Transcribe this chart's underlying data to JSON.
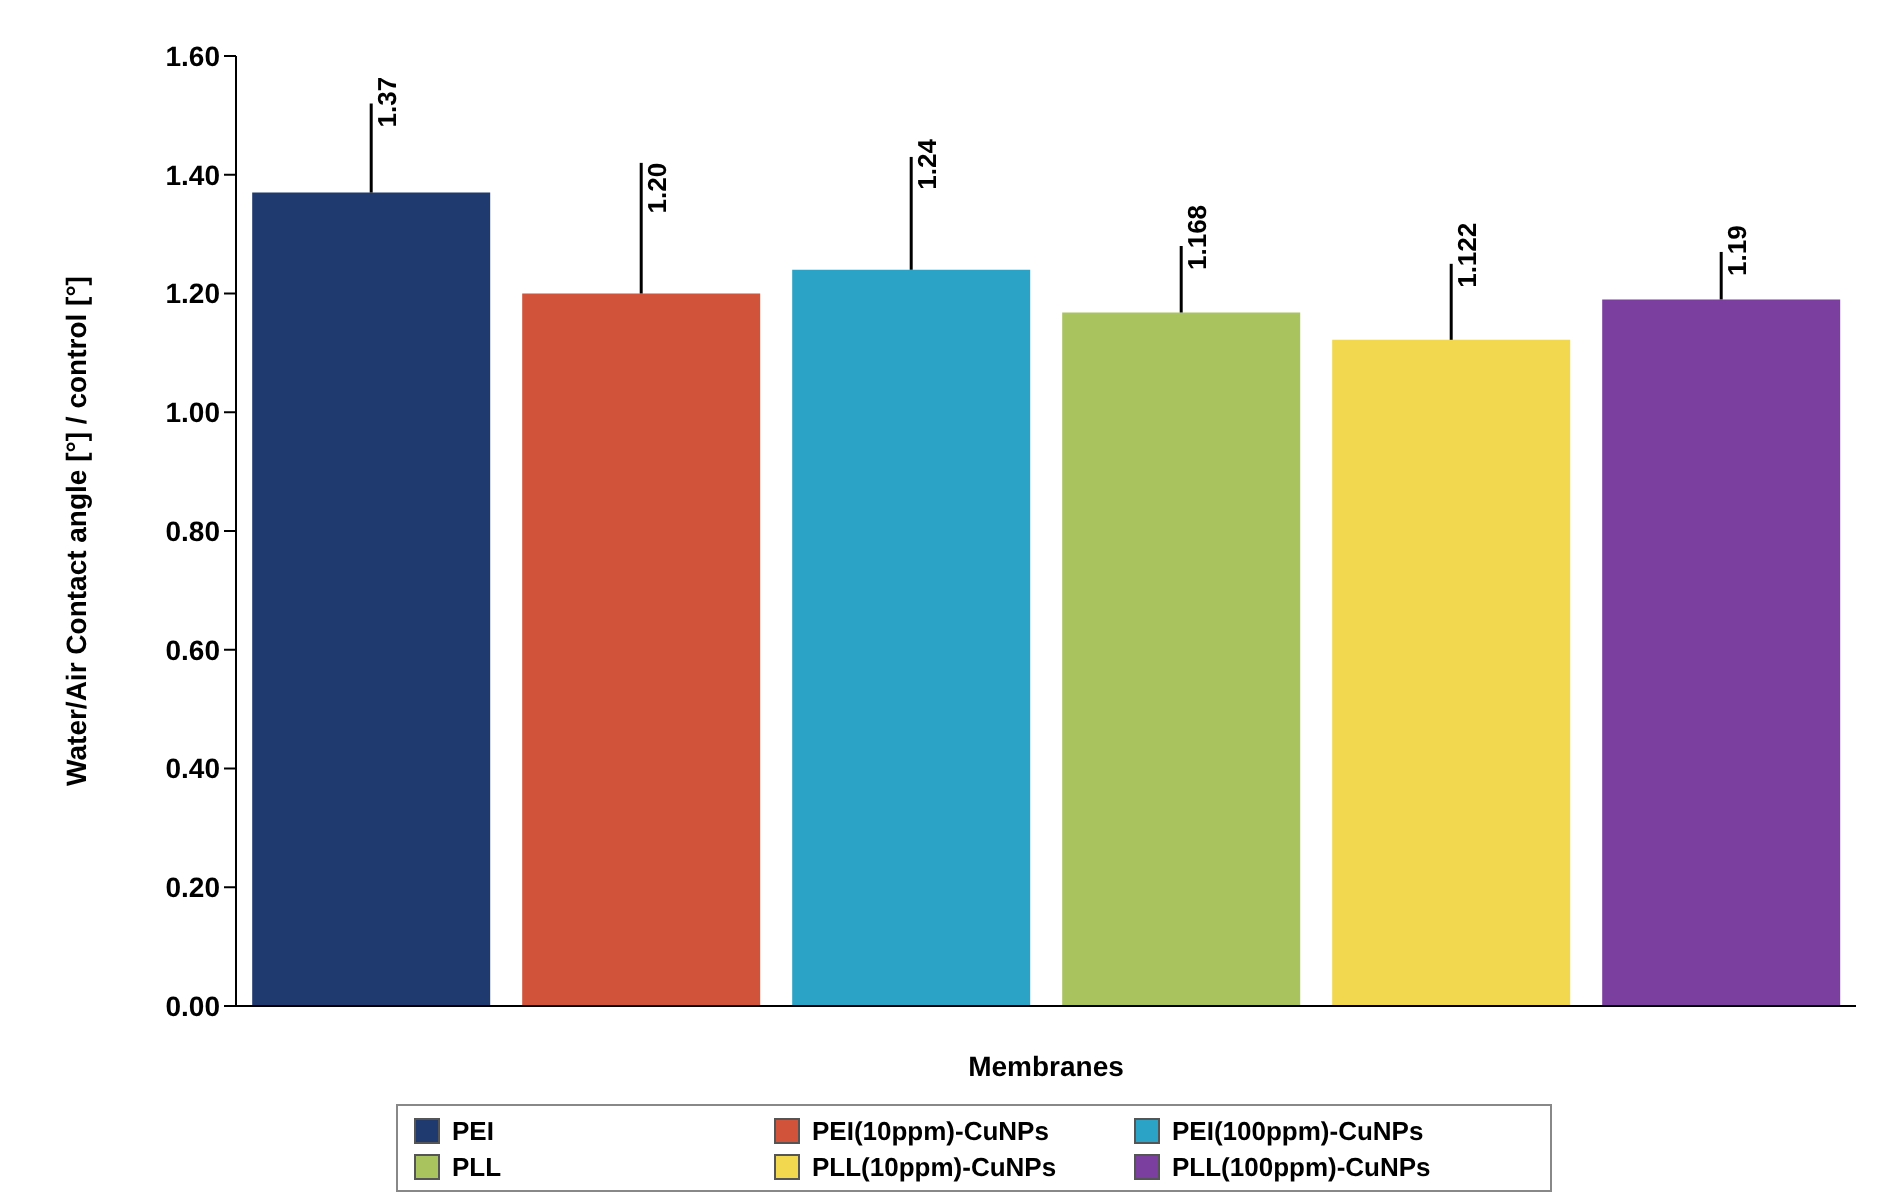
{
  "chart_data": {
    "type": "bar",
    "xlabel": "Membranes",
    "ylabel": "Water/Air Contact angle [°] / control [°]",
    "categories": [
      null,
      null,
      null,
      null,
      null,
      null
    ],
    "series": [
      {
        "name": "PEI",
        "color": "#1f3a6e",
        "values": [
          1.37,
          null,
          null,
          null,
          null,
          null
        ],
        "errors": [
          [
            1.37,
            1.52
          ],
          null,
          null,
          null,
          null,
          null
        ],
        "value_labels": [
          "1.37",
          null,
          null,
          null,
          null,
          null
        ]
      },
      {
        "name": "PEI(10ppm)-CuNPs",
        "color": "#d0533a",
        "values": [
          null,
          1.2,
          null,
          null,
          null,
          null
        ],
        "errors": [
          null,
          [
            1.2,
            1.42
          ],
          null,
          null,
          null,
          null
        ],
        "value_labels": [
          null,
          "1.20",
          null,
          null,
          null,
          null
        ]
      },
      {
        "name": "PEI(100ppm)-CuNPs",
        "color": "#2aa3c6",
        "values": [
          null,
          null,
          1.24,
          null,
          null,
          null
        ],
        "errors": [
          null,
          null,
          [
            1.24,
            1.43
          ],
          null,
          null,
          null
        ],
        "value_labels": [
          null,
          null,
          "1.24",
          null,
          null,
          null
        ]
      },
      {
        "name": "PLL",
        "color": "#a9c45f",
        "values": [
          null,
          null,
          null,
          1.168,
          null,
          null
        ],
        "errors": [
          null,
          null,
          null,
          [
            1.168,
            1.28
          ],
          null,
          null
        ],
        "value_labels": [
          null,
          null,
          null,
          "1.168",
          null,
          null
        ]
      },
      {
        "name": "PLL(10ppm)-CuNPs",
        "color": "#f2d84e",
        "values": [
          null,
          null,
          null,
          null,
          1.122,
          null
        ],
        "errors": [
          null,
          null,
          null,
          null,
          [
            1.122,
            1.25
          ],
          null
        ],
        "value_labels": [
          null,
          null,
          null,
          null,
          "1.122",
          null
        ]
      },
      {
        "name": "PLL(100ppm)-CuNPs",
        "color": "#7b3fa0",
        "values": [
          null,
          null,
          null,
          null,
          null,
          1.19
        ],
        "errors": [
          null,
          null,
          null,
          null,
          null,
          [
            1.19,
            1.27
          ]
        ],
        "value_labels": [
          null,
          null,
          null,
          null,
          null,
          "1.19"
        ]
      }
    ],
    "ylim": [
      0,
      1.6
    ],
    "yticks": [
      {
        "value": 0,
        "label": "0.00"
      },
      {
        "value": 0.2,
        "label": "0.20"
      },
      {
        "value": 0.4,
        "label": "0.40"
      },
      {
        "value": 0.6,
        "label": "0.60"
      },
      {
        "value": 0.8,
        "label": "0.80"
      },
      {
        "value": 1,
        "label": "1.00"
      },
      {
        "value": 1.2,
        "label": "1.20"
      },
      {
        "value": 1.4,
        "label": "1.40"
      },
      {
        "value": 1.6,
        "label": "1.60"
      }
    ],
    "grid": false,
    "legend": "bottom",
    "tick_labels": "y"
  }
}
